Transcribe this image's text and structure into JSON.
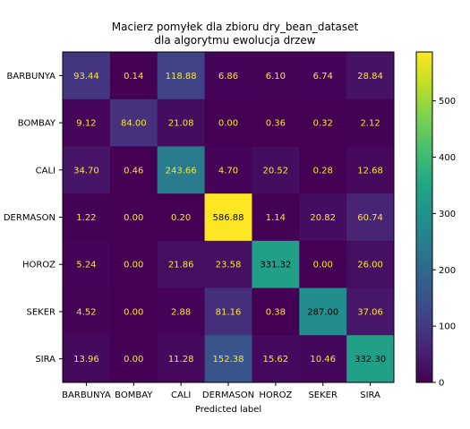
{
  "chart_data": {
    "type": "heatmap",
    "title": "Macierz pomyłek dla zbioru dry_bean_dataset\ndla algorytmu ewolucja drzew",
    "title_lines": [
      "Macierz pomyłek dla zbioru dry_bean_dataset",
      "dla algorytmu ewolucja drzew"
    ],
    "xlabel": "Predicted label",
    "ylabel": "",
    "x_categories": [
      "BARBUNYA",
      "BOMBAY",
      "CALI",
      "DERMASON",
      "HOROZ",
      "SEKER",
      "SIRA"
    ],
    "y_categories": [
      "BARBUNYA",
      "BOMBAY",
      "CALI",
      "DERMASON",
      "HOROZ",
      "SEKER",
      "SIRA"
    ],
    "values": [
      [
        93.44,
        0.14,
        118.88,
        6.86,
        6.1,
        6.74,
        28.84
      ],
      [
        9.12,
        84.0,
        21.08,
        0.0,
        0.36,
        0.32,
        2.12
      ],
      [
        34.7,
        0.46,
        243.66,
        4.7,
        20.52,
        0.28,
        12.68
      ],
      [
        1.22,
        0.0,
        0.2,
        586.88,
        1.14,
        20.82,
        60.74
      ],
      [
        5.24,
        0.0,
        21.86,
        23.58,
        331.32,
        0.0,
        26.0
      ],
      [
        4.52,
        0.0,
        2.88,
        81.16,
        0.38,
        287.0,
        37.06
      ],
      [
        13.96,
        0.0,
        11.28,
        152.38,
        15.62,
        10.46,
        332.3
      ]
    ],
    "value_labels": [
      [
        "93.44",
        "0.14",
        "118.88",
        "6.86",
        "6.10",
        "6.74",
        "28.84"
      ],
      [
        "9.12",
        "84.00",
        "21.08",
        "0.00",
        "0.36",
        "0.32",
        "2.12"
      ],
      [
        "34.70",
        "0.46",
        "243.66",
        "4.70",
        "20.52",
        "0.28",
        "12.68"
      ],
      [
        "1.22",
        "0.00",
        "0.20",
        "586.88",
        "1.14",
        "20.82",
        "60.74"
      ],
      [
        "5.24",
        "0.00",
        "21.86",
        "23.58",
        "331.32",
        "0.00",
        "26.00"
      ],
      [
        "4.52",
        "0.00",
        "2.88",
        "81.16",
        "0.38",
        "287.00",
        "37.06"
      ],
      [
        "13.96",
        "0.00",
        "11.28",
        "152.38",
        "15.62",
        "10.46",
        "332.30"
      ]
    ],
    "colormap": "viridis",
    "colorbar": {
      "range": [
        0,
        586.88
      ],
      "ticks": [
        0,
        100,
        200,
        300,
        400,
        500
      ],
      "tick_labels": [
        "0",
        "100",
        "200",
        "300",
        "400",
        "500"
      ]
    },
    "grid": false,
    "text_colors": {
      "light": "#fde725",
      "dark": "#000000"
    }
  }
}
